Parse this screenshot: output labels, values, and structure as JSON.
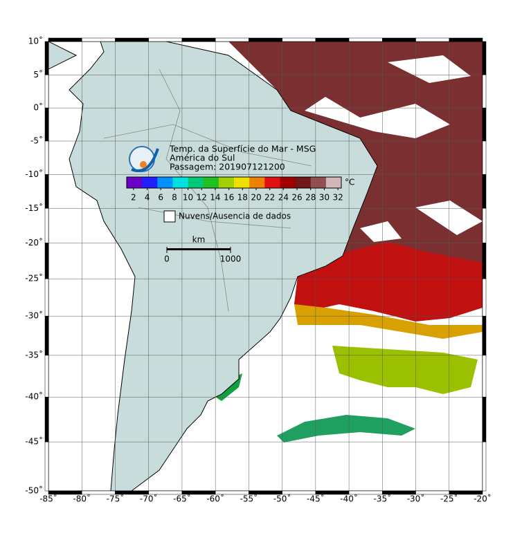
{
  "map": {
    "title_lines": [
      "Temp. da Superfície do Mar - MSG",
      "América do Sul",
      "Passagem: 201907121200"
    ],
    "lon_ticks": [
      {
        "value": -85,
        "label": "-85˚"
      },
      {
        "value": -80,
        "label": "-80˚"
      },
      {
        "value": -75,
        "label": "-75˚"
      },
      {
        "value": -70,
        "label": "-70˚"
      },
      {
        "value": -65,
        "label": "-65˚"
      },
      {
        "value": -60,
        "label": "-60˚"
      },
      {
        "value": -55,
        "label": "-55˚"
      },
      {
        "value": -50,
        "label": "-50˚"
      },
      {
        "value": -45,
        "label": "-45˚"
      },
      {
        "value": -40,
        "label": "-40˚"
      },
      {
        "value": -35,
        "label": "-35˚"
      },
      {
        "value": -30,
        "label": "-30˚"
      },
      {
        "value": -25,
        "label": "-25˚"
      },
      {
        "value": -20,
        "label": "-20˚"
      }
    ],
    "lat_ticks": [
      {
        "value": 10,
        "label": "10˚"
      },
      {
        "value": 5,
        "label": "5˚"
      },
      {
        "value": 0,
        "label": "0˚"
      },
      {
        "value": -5,
        "label": "-5˚"
      },
      {
        "value": -10,
        "label": "-10˚"
      },
      {
        "value": -15,
        "label": "-15˚"
      },
      {
        "value": -20,
        "label": "-20˚"
      },
      {
        "value": -25,
        "label": "-25˚"
      },
      {
        "value": -30,
        "label": "-30˚"
      },
      {
        "value": -35,
        "label": "-35˚"
      },
      {
        "value": -40,
        "label": "-40˚"
      },
      {
        "value": -45,
        "label": "-45˚"
      },
      {
        "value": -50,
        "label": "-50˚"
      }
    ],
    "colorbar": {
      "unit": "°C",
      "ticks": [
        2,
        4,
        6,
        8,
        10,
        12,
        14,
        16,
        18,
        20,
        22,
        24,
        26,
        28,
        30,
        32
      ],
      "range": [
        1,
        32.5
      ],
      "colors": [
        "#6a00c8",
        "#2020ff",
        "#0090ff",
        "#00e0e0",
        "#00c878",
        "#20c020",
        "#a0d000",
        "#f0e000",
        "#f08000",
        "#e01010",
        "#a00000",
        "#701818",
        "#905050",
        "#d0b8b8"
      ]
    },
    "cloud_legend": "Nuvens/Ausencia de dados",
    "scale_bar": {
      "unit": "km",
      "ticks": [
        0,
        1000
      ]
    }
  }
}
